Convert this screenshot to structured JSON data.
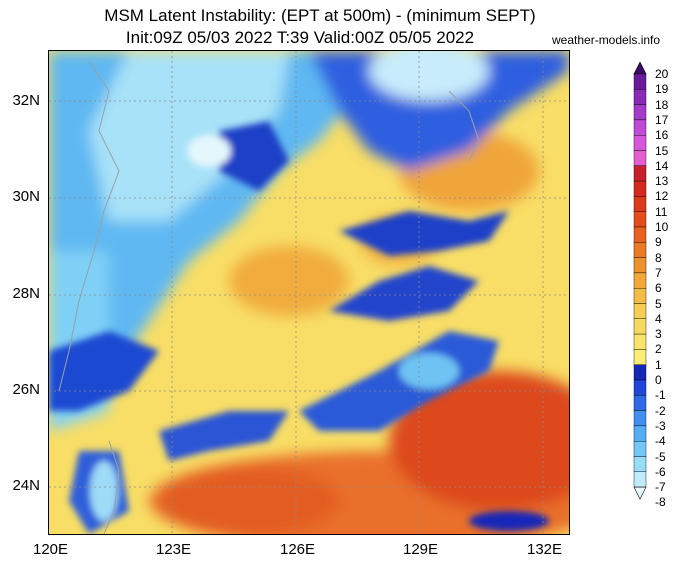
{
  "title": {
    "line1": "MSM Latent Instability: (EPT at 500m) - (minimum SEPT)",
    "line2": "Init:09Z 05/03 2022  T:39 Valid:00Z 05/05 2022"
  },
  "credit": "weather-models.info",
  "lat_labels": [
    "32N",
    "30N",
    "28N",
    "26N",
    "24N"
  ],
  "lon_labels": [
    "120E",
    "123E",
    "126E",
    "129E",
    "132E"
  ],
  "colorbar": {
    "labels": [
      "20",
      "19",
      "18",
      "17",
      "16",
      "15",
      "14",
      "13",
      "12",
      "11",
      "10",
      "9",
      "8",
      "7",
      "6",
      "5",
      "4",
      "3",
      "2",
      "1",
      "0",
      "-1",
      "-2",
      "-3",
      "-4",
      "-5",
      "-6",
      "-7",
      "-8"
    ],
    "colors": [
      "#3d0a6b",
      "#6a1a9a",
      "#8a2bb8",
      "#a53acb",
      "#bf4ad8",
      "#d457dc",
      "#e35fd0",
      "#c8202a",
      "#d42a22",
      "#dd3a1c",
      "#e44d1c",
      "#e8621f",
      "#ec7a25",
      "#ef922d",
      "#f1a838",
      "#f3bc45",
      "#f5cc54",
      "#f7d860",
      "#f9e36b",
      "#fbec75",
      "#1428b8",
      "#1f46d8",
      "#2e6ae6",
      "#3f8ef0",
      "#55aef4",
      "#73c8f6",
      "#98dcf8",
      "#c1ecfb",
      "#e5f8fd"
    ]
  }
}
